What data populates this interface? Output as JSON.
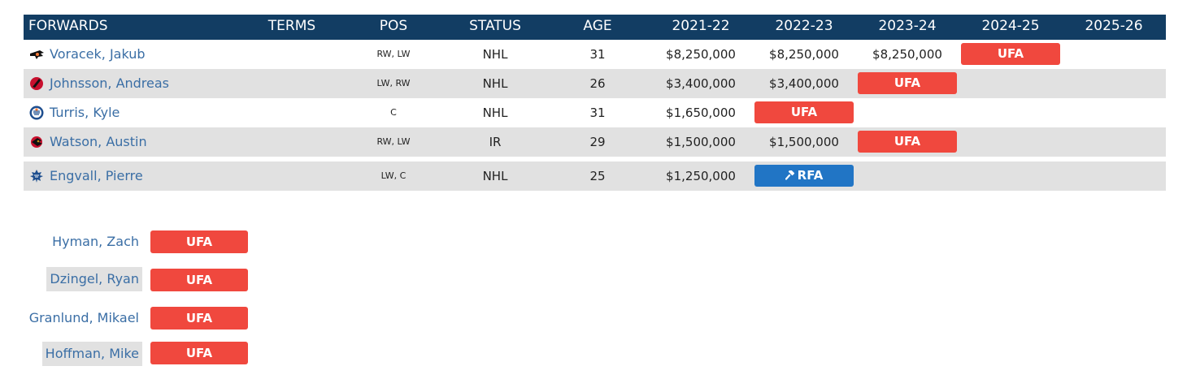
{
  "header": {
    "forwards": "FORWARDS",
    "terms": "TERMS",
    "pos": "POS",
    "status": "STATUS",
    "age": "AGE",
    "y1": "2021-22",
    "y2": "2022-23",
    "y3": "2023-24",
    "y4": "2024-25",
    "y5": "2025-26"
  },
  "rows": [
    {
      "name": "Voracek, Jakub",
      "logo": "flyers-logo-icon",
      "pos": "RW, LW",
      "status": "NHL",
      "age": "31",
      "y1": "$8,250,000",
      "y2": "$8,250,000",
      "y3": "$8,250,000",
      "badge": "UFA",
      "badge_type": "ufa"
    },
    {
      "name": "Johnsson, Andreas",
      "logo": "devils-logo-icon",
      "pos": "LW, RW",
      "status": "NHL",
      "age": "26",
      "y1": "$3,400,000",
      "y2": "$3,400,000",
      "badge": "UFA",
      "badge_type": "ufa"
    },
    {
      "name": "Turris, Kyle",
      "logo": "oilers-logo-icon",
      "pos": "C",
      "status": "NHL",
      "age": "31",
      "y1": "$1,650,000",
      "badge": "UFA",
      "badge_type": "ufa"
    },
    {
      "name": "Watson, Austin",
      "logo": "senators-logo-icon",
      "pos": "RW, LW",
      "status": "IR",
      "age": "29",
      "y1": "$1,500,000",
      "y2": "$1,500,000",
      "badge": "UFA",
      "badge_type": "ufa"
    },
    {
      "name": "Engvall, Pierre",
      "logo": "maple-leafs-logo-icon",
      "pos": "LW, C",
      "status": "NHL",
      "age": "25",
      "y1": "$1,250,000",
      "badge": "RFA",
      "badge_icon": "gavel-icon",
      "badge_type": "rfa"
    }
  ],
  "extra": [
    {
      "name": "Hyman, Zach",
      "badge": "UFA"
    },
    {
      "name": "Dzingel, Ryan",
      "badge": "UFA"
    },
    {
      "name": "Granlund, Mikael",
      "badge": "UFA"
    },
    {
      "name": "Hoffman, Mike",
      "badge": "UFA"
    }
  ],
  "colors": {
    "header_bg": "#123d63",
    "ufa": "#f0483e",
    "rfa": "#2175c5",
    "link": "#3a6ea5",
    "alt_row": "#e1e1e1"
  }
}
